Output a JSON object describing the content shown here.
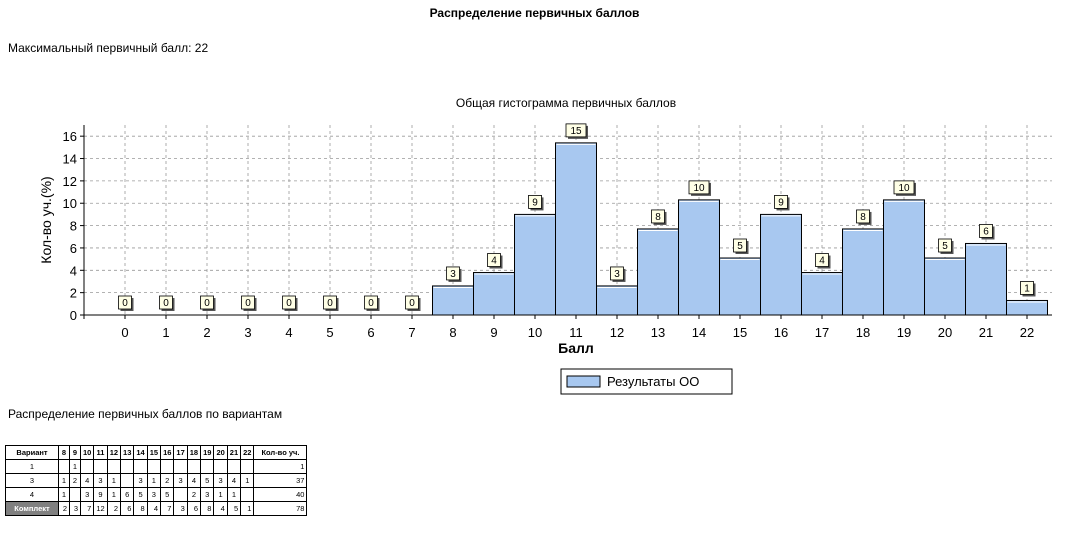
{
  "page": {
    "title": "Распределение первичных баллов",
    "max_score_label": "Максимальный первичный балл: 22",
    "variants_section_title": "Распределение первичных баллов по вариантам"
  },
  "chart_data": {
    "type": "bar",
    "title": "Общая гистограмма первичных баллов",
    "xlabel": "Балл",
    "ylabel": "Кол-во уч.(%)",
    "categories": [
      "0",
      "1",
      "2",
      "3",
      "4",
      "5",
      "6",
      "7",
      "8",
      "9",
      "10",
      "11",
      "12",
      "13",
      "14",
      "15",
      "16",
      "17",
      "18",
      "19",
      "20",
      "21",
      "22"
    ],
    "series": [
      {
        "name": "Результаты ОО",
        "values": [
          0,
          0,
          0,
          0,
          0,
          0,
          0,
          0,
          2.6,
          3.8,
          9,
          15.4,
          2.6,
          7.7,
          10.3,
          5.1,
          9,
          3.8,
          7.7,
          10.3,
          5.1,
          6.4,
          1.3
        ],
        "labels": [
          "0",
          "0",
          "0",
          "0",
          "0",
          "0",
          "0",
          "0",
          "3",
          "4",
          "9",
          "15",
          "3",
          "8",
          "10",
          "5",
          "9",
          "4",
          "8",
          "10",
          "5",
          "6",
          "1"
        ]
      }
    ],
    "ylim": [
      0,
      17
    ],
    "yticks": [
      0,
      2,
      4,
      6,
      8,
      10,
      12,
      14,
      16
    ],
    "grid": true,
    "legend_position": "bottom",
    "bar_color": "#a8c8f0"
  },
  "variants_table": {
    "headers": [
      "Вариант",
      "8",
      "9",
      "10",
      "11",
      "12",
      "13",
      "14",
      "15",
      "16",
      "17",
      "18",
      "19",
      "20",
      "21",
      "22",
      "Кол-во уч."
    ],
    "rows": [
      [
        "1",
        "",
        "1",
        "",
        "",
        "",
        "",
        "",
        "",
        "",
        "",
        "",
        "",
        "",
        "",
        "",
        "1"
      ],
      [
        "3",
        "1",
        "2",
        "4",
        "3",
        "1",
        "",
        "3",
        "1",
        "2",
        "3",
        "4",
        "5",
        "3",
        "4",
        "1",
        "37"
      ],
      [
        "4",
        "1",
        "",
        "3",
        "9",
        "1",
        "6",
        "5",
        "3",
        "5",
        "",
        "2",
        "3",
        "1",
        "1",
        "",
        "40"
      ],
      [
        "Комплект",
        "2",
        "3",
        "7",
        "12",
        "2",
        "6",
        "8",
        "4",
        "7",
        "3",
        "6",
        "8",
        "4",
        "5",
        "1",
        "78"
      ]
    ]
  }
}
